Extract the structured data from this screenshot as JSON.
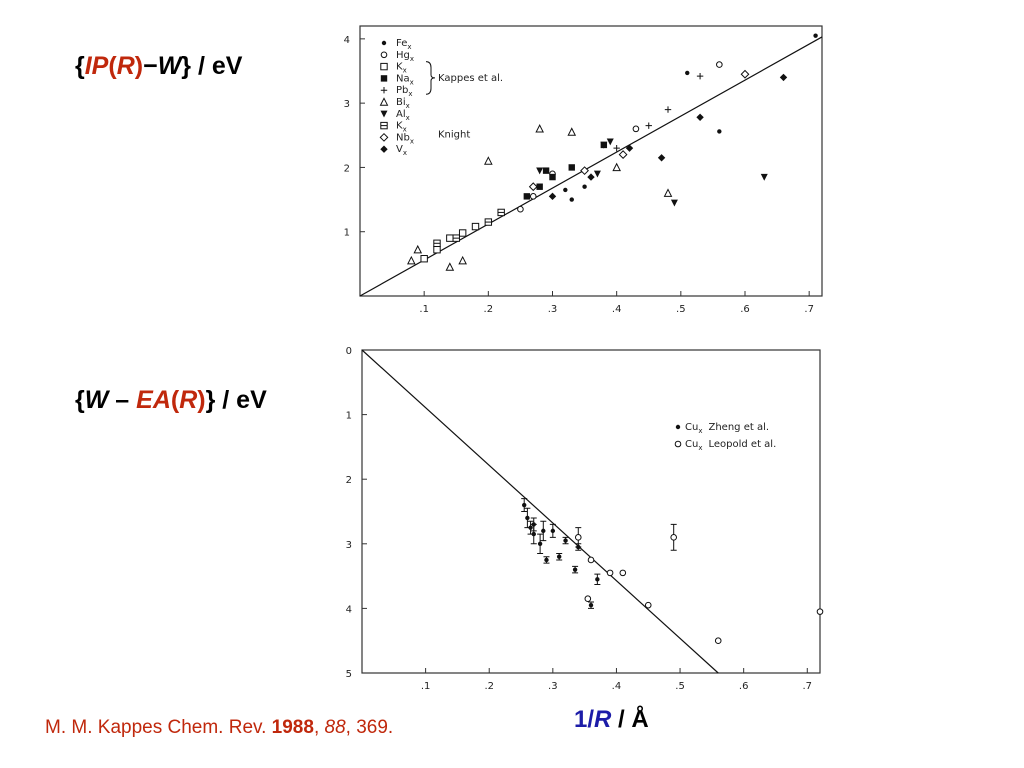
{
  "labels": {
    "top_open": "{",
    "top_ip": "IP",
    "top_paren_open": "(",
    "top_r": "R",
    "top_paren_close": ")",
    "top_minus": "−",
    "top_w": "W",
    "top_rest": "} / eV",
    "bottom_open": "{",
    "bottom_w": "W",
    "bottom_minus": " – ",
    "bottom_ea": "EA",
    "bottom_paren_open": "(",
    "bottom_r": "R",
    "bottom_paren_close": ")",
    "bottom_rest": "} / eV",
    "xlabel_num": "1/",
    "xlabel_r": "R",
    "xlabel_unit": " / Å"
  },
  "citation": {
    "authors": "M. M. Kappes Chem. Rev. ",
    "year": "1988",
    "sep1": ", ",
    "volume": "88",
    "pages": ", 369."
  },
  "colors": {
    "accent_red": "#c0280c",
    "accent_blue": "#1c1ca8"
  },
  "chart_data": [
    {
      "type": "scatter",
      "title": "",
      "xlabel": "",
      "ylabel": "",
      "xlim": [
        0,
        0.72
      ],
      "ylim": [
        0,
        4.2
      ],
      "x_ticks": [
        ".1",
        ".2",
        ".3",
        ".4",
        ".5",
        ".6",
        ".7"
      ],
      "y_ticks": [
        "1",
        "2",
        "3",
        "4"
      ],
      "x_tick_values": [
        0.1,
        0.2,
        0.3,
        0.4,
        0.5,
        0.6,
        0.7
      ],
      "y_tick_values": [
        1,
        2,
        3,
        4
      ],
      "line": {
        "x": [
          0,
          0.72
        ],
        "y": [
          0,
          4.03
        ]
      },
      "legend": {
        "entries": [
          {
            "label": "Fe",
            "sub": "x",
            "marker": "dot"
          },
          {
            "label": "Hg",
            "sub": "x",
            "marker": "circle"
          },
          {
            "label": "K",
            "sub": "x",
            "marker": "square-open"
          },
          {
            "label": "Na",
            "sub": "x",
            "marker": "square"
          },
          {
            "label": "Pb",
            "sub": "x",
            "marker": "plus"
          },
          {
            "label": "Bi",
            "sub": "x",
            "marker": "triangle-open"
          },
          {
            "label": "Al",
            "sub": "x",
            "marker": "triangle-down"
          },
          {
            "label": "K",
            "sub": "x",
            "marker": "square-cross"
          },
          {
            "label": "Nb",
            "sub": "x",
            "marker": "diamond-open"
          },
          {
            "label": "V",
            "sub": "x",
            "marker": "diamond"
          }
        ],
        "group1": "Kappes et al.",
        "group2": "Knight"
      },
      "series": [
        {
          "name": "Fe",
          "marker": "dot",
          "points": [
            [
              0.71,
              4.05
            ],
            [
              0.56,
              2.56
            ],
            [
              0.51,
              3.47
            ],
            [
              0.32,
              1.65
            ],
            [
              0.33,
              1.5
            ],
            [
              0.35,
              1.7
            ]
          ]
        },
        {
          "name": "Hg",
          "marker": "circle",
          "points": [
            [
              0.56,
              3.6
            ],
            [
              0.43,
              2.6
            ],
            [
              0.3,
              1.9
            ],
            [
              0.27,
              1.55
            ],
            [
              0.25,
              1.35
            ]
          ]
        },
        {
          "name": "K",
          "marker": "square-open",
          "points": [
            [
              0.1,
              0.58
            ],
            [
              0.12,
              0.72
            ],
            [
              0.14,
              0.9
            ],
            [
              0.16,
              0.98
            ],
            [
              0.18,
              1.08
            ]
          ]
        },
        {
          "name": "Na",
          "marker": "square",
          "points": [
            [
              0.26,
              1.55
            ],
            [
              0.28,
              1.7
            ],
            [
              0.3,
              1.85
            ],
            [
              0.33,
              2.0
            ],
            [
              0.38,
              2.35
            ],
            [
              0.29,
              1.95
            ]
          ]
        },
        {
          "name": "Pb",
          "marker": "plus",
          "points": [
            [
              0.53,
              3.42
            ],
            [
              0.48,
              2.9
            ],
            [
              0.45,
              2.65
            ],
            [
              0.4,
              2.3
            ]
          ]
        },
        {
          "name": "Bi",
          "marker": "triangle-open",
          "points": [
            [
              0.28,
              2.6
            ],
            [
              0.33,
              2.55
            ],
            [
              0.4,
              2.0
            ],
            [
              0.48,
              1.6
            ],
            [
              0.2,
              2.1
            ],
            [
              0.16,
              0.55
            ],
            [
              0.14,
              0.45
            ],
            [
              0.08,
              0.55
            ],
            [
              0.09,
              0.72
            ]
          ]
        },
        {
          "name": "Al",
          "marker": "triangle-down",
          "points": [
            [
              0.63,
              1.85
            ],
            [
              0.49,
              1.45
            ],
            [
              0.37,
              1.9
            ],
            [
              0.38,
              2.35
            ],
            [
              0.39,
              2.4
            ],
            [
              0.28,
              1.95
            ]
          ]
        },
        {
          "name": "K (Knight)",
          "marker": "square-cross",
          "points": [
            [
              0.12,
              0.82
            ],
            [
              0.15,
              0.9
            ],
            [
              0.2,
              1.15
            ],
            [
              0.22,
              1.3
            ]
          ]
        },
        {
          "name": "Nb",
          "marker": "diamond-open",
          "points": [
            [
              0.6,
              3.45
            ],
            [
              0.41,
              2.2
            ],
            [
              0.35,
              1.95
            ],
            [
              0.27,
              1.7
            ]
          ]
        },
        {
          "name": "V",
          "marker": "diamond",
          "points": [
            [
              0.66,
              3.4
            ],
            [
              0.53,
              2.78
            ],
            [
              0.47,
              2.15
            ],
            [
              0.42,
              2.3
            ],
            [
              0.36,
              1.85
            ],
            [
              0.3,
              1.55
            ]
          ]
        }
      ]
    },
    {
      "type": "scatter",
      "title": "",
      "xlabel": "",
      "ylabel": "",
      "xlim": [
        0,
        0.72
      ],
      "ylim": [
        0,
        5
      ],
      "y_inverted": true,
      "x_ticks": [
        ".1",
        ".2",
        ".3",
        ".4",
        ".5",
        ".6",
        ".7"
      ],
      "y_ticks": [
        "0",
        "1",
        "2",
        "3",
        "4",
        "5"
      ],
      "x_tick_values": [
        0.1,
        0.2,
        0.3,
        0.4,
        0.5,
        0.6,
        0.7
      ],
      "y_tick_values": [
        0,
        1,
        2,
        3,
        4,
        5
      ],
      "line": {
        "x": [
          0,
          0.56
        ],
        "y": [
          0,
          5
        ]
      },
      "legend": {
        "entries": [
          {
            "label": "Cu",
            "sub": "x",
            "author": "Zheng et al.",
            "marker": "dot"
          },
          {
            "label": "Cu",
            "sub": "x",
            "author": "Leopold et al.",
            "marker": "circle"
          }
        ]
      },
      "series": [
        {
          "name": "Zheng et al.",
          "marker": "dot",
          "points": [
            [
              0.255,
              2.4
            ],
            [
              0.26,
              2.6
            ],
            [
              0.265,
              2.75
            ],
            [
              0.27,
              2.7
            ],
            [
              0.27,
              2.85
            ],
            [
              0.28,
              3.0
            ],
            [
              0.285,
              2.8
            ],
            [
              0.3,
              2.8
            ],
            [
              0.29,
              3.25
            ],
            [
              0.31,
              3.2
            ],
            [
              0.32,
              2.95
            ],
            [
              0.335,
              3.4
            ],
            [
              0.34,
              3.05
            ],
            [
              0.37,
              3.55
            ],
            [
              0.36,
              3.95
            ]
          ],
          "error_bars": [
            0.1,
            0.15,
            0.1,
            0.1,
            0.15,
            0.15,
            0.15,
            0.1,
            0.05,
            0.05,
            0.05,
            0.05,
            0.05,
            0.08,
            0.05
          ]
        },
        {
          "name": "Leopold et al.",
          "marker": "circle",
          "points": [
            [
              0.34,
              2.9
            ],
            [
              0.36,
              3.25
            ],
            [
              0.39,
              3.45
            ],
            [
              0.41,
              3.45
            ],
            [
              0.45,
              3.95
            ],
            [
              0.49,
              2.9
            ],
            [
              0.56,
              4.5
            ],
            [
              0.72,
              4.05
            ],
            [
              0.355,
              3.85
            ]
          ],
          "error_bars": [
            0.15,
            0,
            0,
            0,
            0,
            0.2,
            0,
            0,
            0
          ]
        }
      ]
    }
  ]
}
